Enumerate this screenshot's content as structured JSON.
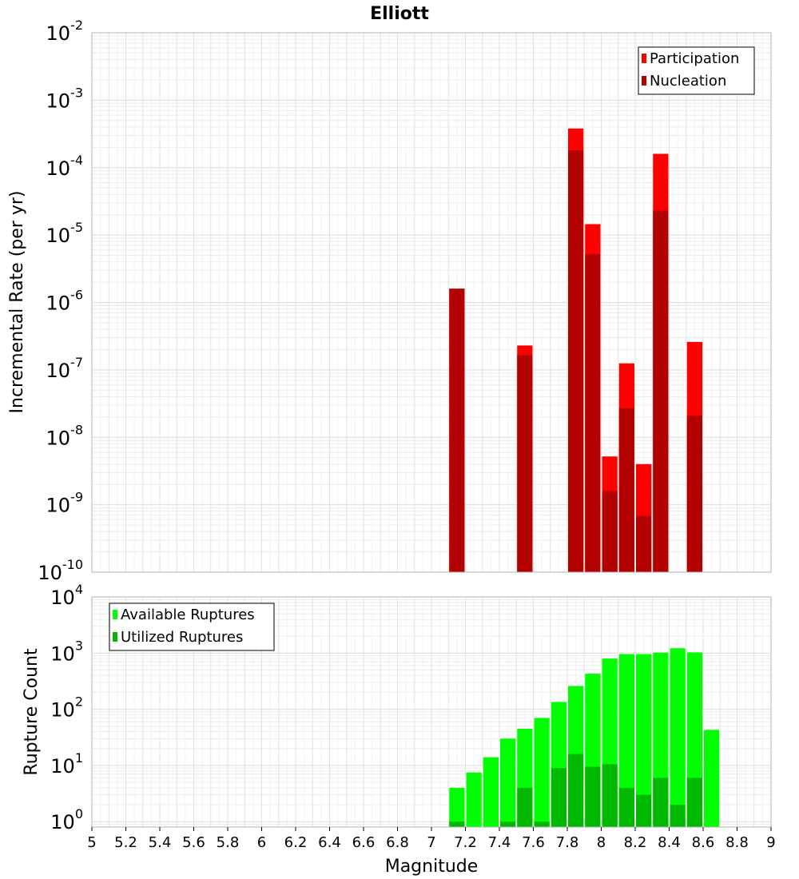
{
  "chart_data": {
    "title": "Elliott",
    "xlabel": "Magnitude",
    "xlim": [
      5,
      9
    ],
    "x_ticks": [
      "5",
      "5.2",
      "5.4",
      "5.6",
      "5.8",
      "6",
      "6.2",
      "6.4",
      "6.6",
      "6.8",
      "7",
      "7.2",
      "7.4",
      "7.6",
      "7.8",
      "8",
      "8.2",
      "8.4",
      "8.6",
      "8.8",
      "9"
    ],
    "bin_width": 0.1,
    "grid": true,
    "panels": [
      {
        "type": "bar",
        "ylabel": "Incremental Rate (per yr)",
        "y_scale": "log",
        "ylim": [
          1e-10,
          0.01
        ],
        "y_tick_exponents": [
          "-10",
          "-9",
          "-8",
          "-7",
          "-6",
          "-5",
          "-4",
          "-3",
          "-2"
        ],
        "legend_position": "top-right",
        "series": [
          {
            "name": "Participation",
            "color": "#ff0000",
            "points": [
              {
                "x": 7.15,
                "y": 1.6e-06
              },
              {
                "x": 7.55,
                "y": 2.3e-07
              },
              {
                "x": 7.85,
                "y": 0.00038
              },
              {
                "x": 7.95,
                "y": 1.45e-05
              },
              {
                "x": 8.05,
                "y": 5.2e-09
              },
              {
                "x": 8.15,
                "y": 1.25e-07
              },
              {
                "x": 8.25,
                "y": 4e-09
              },
              {
                "x": 8.35,
                "y": 0.00016
              },
              {
                "x": 8.55,
                "y": 2.6e-07
              }
            ]
          },
          {
            "name": "Nucleation",
            "color": "#b30000",
            "points": [
              {
                "x": 7.15,
                "y": 1.6e-06
              },
              {
                "x": 7.55,
                "y": 1.65e-07
              },
              {
                "x": 7.85,
                "y": 0.00018
              },
              {
                "x": 7.95,
                "y": 5.2e-06
              },
              {
                "x": 8.05,
                "y": 1.6e-09
              },
              {
                "x": 8.15,
                "y": 2.7e-08
              },
              {
                "x": 8.25,
                "y": 6.8e-10
              },
              {
                "x": 8.35,
                "y": 2.3e-05
              },
              {
                "x": 8.55,
                "y": 2.1e-08
              }
            ]
          }
        ]
      },
      {
        "type": "bar",
        "ylabel": "Rupture Count",
        "y_scale": "log",
        "ylim": [
          0.8,
          10000.0
        ],
        "y_tick_exponents": [
          "0",
          "1",
          "2",
          "3",
          "4"
        ],
        "legend_position": "top-left",
        "series": [
          {
            "name": "Available Ruptures",
            "color": "#00ff00",
            "points": [
              {
                "x": 7.15,
                "y": 4
              },
              {
                "x": 7.25,
                "y": 7.5
              },
              {
                "x": 7.35,
                "y": 14
              },
              {
                "x": 7.45,
                "y": 30
              },
              {
                "x": 7.55,
                "y": 45
              },
              {
                "x": 7.65,
                "y": 70
              },
              {
                "x": 7.75,
                "y": 135
              },
              {
                "x": 7.85,
                "y": 260
              },
              {
                "x": 7.95,
                "y": 430
              },
              {
                "x": 8.05,
                "y": 800
              },
              {
                "x": 8.15,
                "y": 960
              },
              {
                "x": 8.25,
                "y": 960
              },
              {
                "x": 8.35,
                "y": 1020
              },
              {
                "x": 8.45,
                "y": 1220
              },
              {
                "x": 8.55,
                "y": 1030
              },
              {
                "x": 8.65,
                "y": 43
              }
            ]
          },
          {
            "name": "Utilized Ruptures",
            "color": "#00b800",
            "points": [
              {
                "x": 7.15,
                "y": 1
              },
              {
                "x": 7.45,
                "y": 1
              },
              {
                "x": 7.55,
                "y": 4
              },
              {
                "x": 7.65,
                "y": 1
              },
              {
                "x": 7.75,
                "y": 9
              },
              {
                "x": 7.85,
                "y": 16
              },
              {
                "x": 7.95,
                "y": 9.5
              },
              {
                "x": 8.05,
                "y": 10.5
              },
              {
                "x": 8.15,
                "y": 4
              },
              {
                "x": 8.25,
                "y": 3
              },
              {
                "x": 8.35,
                "y": 6
              },
              {
                "x": 8.45,
                "y": 2
              },
              {
                "x": 8.55,
                "y": 6
              }
            ]
          }
        ]
      }
    ]
  }
}
